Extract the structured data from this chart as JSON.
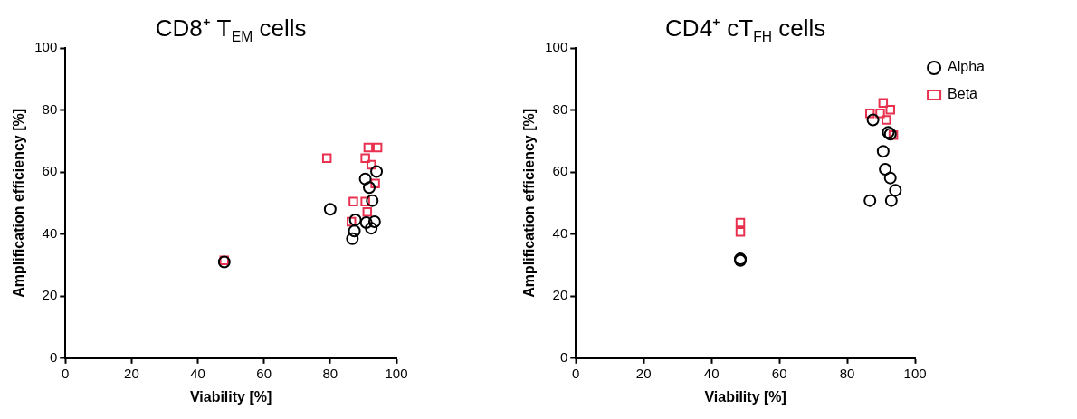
{
  "chart_data": [
    {
      "type": "scatter",
      "title": "CD8⁺ T$_{EM}$ cells",
      "xlabel": "Viability [%]",
      "ylabel": "Amplification efficiency [%]",
      "xlim": [
        0,
        100
      ],
      "xticks": [
        0,
        20,
        40,
        60,
        80,
        100
      ],
      "ylim": [
        0,
        100
      ],
      "yticks": [
        0,
        20,
        40,
        60,
        80,
        100
      ],
      "grid": false,
      "legend": false,
      "series": [
        {
          "color": "#000000",
          "marker": "circle",
          "x": [
            48,
            80,
            94,
            90.6,
            91.8,
            92.7,
            87.6,
            90.9,
            93.4,
            92.4,
            87.3,
            86.7
          ],
          "values": [
            31,
            48,
            60.2,
            57.8,
            55,
            50.8,
            44.6,
            43.7,
            44,
            41.9,
            41,
            38.5
          ]
        },
        {
          "color": "#e8304f",
          "marker": "square",
          "x": [
            48,
            79,
            91.5,
            94.3,
            90.6,
            92.4,
            93.6,
            87,
            90.6,
            91.2,
            86.4
          ],
          "values": [
            31.5,
            64.5,
            67.9,
            67.9,
            64.5,
            62.4,
            56.3,
            50.5,
            50.5,
            47.1,
            44
          ]
        }
      ]
    },
    {
      "type": "scatter",
      "title": "CD4⁺ cT$_{FH}$ cells",
      "xlabel": "Viability [%]",
      "ylabel": "Amplification efficiency [%]",
      "xlim": [
        0,
        100
      ],
      "xticks": [
        0,
        20,
        40,
        60,
        80,
        100
      ],
      "ylim": [
        0,
        100
      ],
      "yticks": [
        0,
        20,
        40,
        60,
        80,
        100
      ],
      "grid": false,
      "legend": "right",
      "series": [
        {
          "name": "Alpha",
          "color": "#000000",
          "marker": "circle",
          "x": [
            48.5,
            48.5,
            87.6,
            92.1,
            92.7,
            90.6,
            91.2,
            92.7,
            94.2,
            86.7,
            93
          ],
          "values": [
            32,
            31.5,
            76.8,
            72.8,
            72.2,
            66.7,
            60.9,
            58.1,
            54.1,
            50.8,
            50.8
          ]
        },
        {
          "name": "Beta",
          "color": "#e8304f",
          "marker": "square",
          "x": [
            48.5,
            48.5,
            90.6,
            86.7,
            89.7,
            92.7,
            91.5,
            93.6
          ],
          "values": [
            43.7,
            40.7,
            82.3,
            78.9,
            78.9,
            80.1,
            76.8,
            71.9
          ]
        }
      ]
    }
  ]
}
